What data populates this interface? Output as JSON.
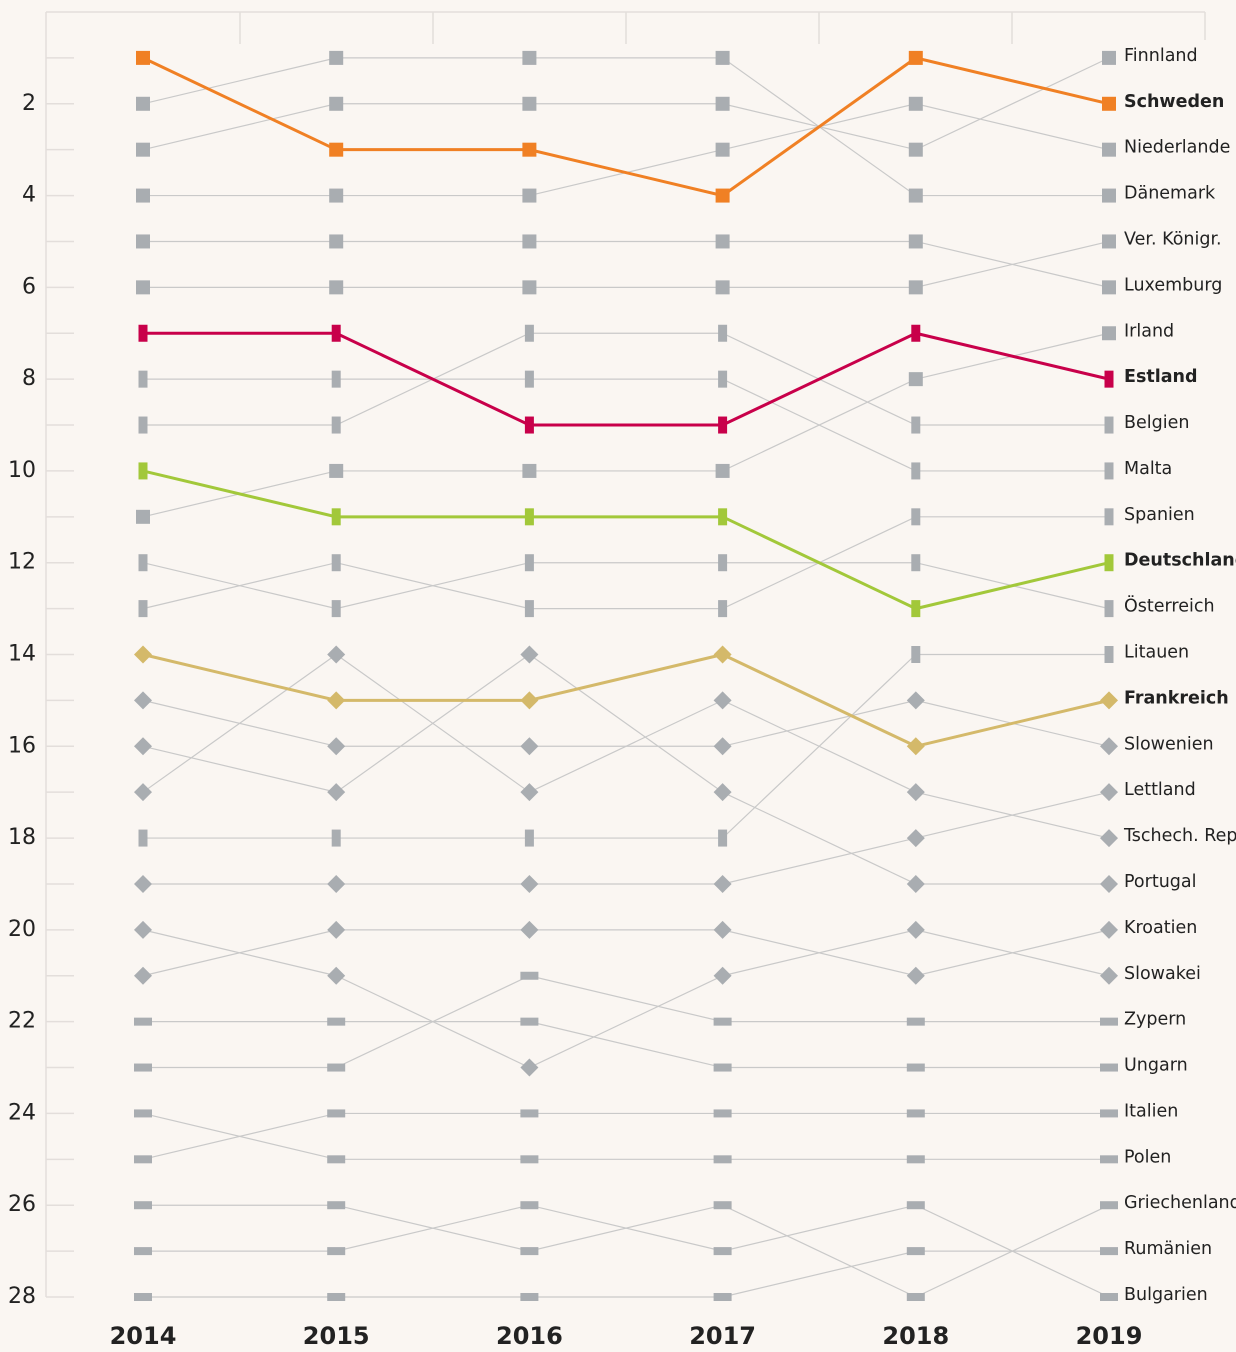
{
  "chart_data": {
    "type": "line",
    "categories": [
      "2014",
      "2015",
      "2016",
      "2017",
      "2018",
      "2019"
    ],
    "ylim": [
      0,
      28
    ],
    "y_inverted": true,
    "yticks": [
      2,
      4,
      6,
      8,
      10,
      12,
      14,
      16,
      18,
      20,
      22,
      24,
      26,
      28
    ],
    "yminor_ticks": [
      1,
      3,
      5,
      7,
      9,
      11,
      13,
      15,
      17,
      19,
      21,
      23,
      25,
      27
    ],
    "line_color": "#c9c9c9",
    "series": [
      {
        "name": "Finnland",
        "color": "#a9adb1",
        "marker": "square",
        "values": [
          3,
          2,
          2,
          2,
          3,
          1
        ]
      },
      {
        "name": "Schweden",
        "color": "#f08024",
        "marker": "square",
        "highlight": true,
        "values": [
          1,
          3,
          3,
          4,
          1,
          2
        ]
      },
      {
        "name": "Niederlande",
        "color": "#a9adb1",
        "marker": "square",
        "values": [
          4,
          4,
          4,
          3,
          2,
          3
        ]
      },
      {
        "name": "Dänemark",
        "color": "#a9adb1",
        "marker": "square",
        "values": [
          2,
          1,
          1,
          1,
          4,
          4
        ]
      },
      {
        "name": "Ver. Königr.",
        "color": "#a9adb1",
        "marker": "square",
        "values": [
          6,
          6,
          6,
          6,
          6,
          5
        ]
      },
      {
        "name": "Luxemburg",
        "color": "#a9adb1",
        "marker": "square",
        "values": [
          5,
          5,
          5,
          5,
          5,
          6
        ]
      },
      {
        "name": "Irland",
        "color": "#a9adb1",
        "marker": "square",
        "values": [
          11,
          10,
          10,
          10,
          8,
          7
        ]
      },
      {
        "name": "Estland",
        "color": "#c8004a",
        "marker": "bar-v",
        "highlight": true,
        "values": [
          7,
          7,
          9,
          9,
          7,
          8
        ]
      },
      {
        "name": "Belgien",
        "color": "#a9adb1",
        "marker": "bar-v",
        "values": [
          9,
          9,
          7,
          7,
          9,
          9
        ]
      },
      {
        "name": "Malta",
        "color": "#a9adb1",
        "marker": "bar-v",
        "values": [
          8,
          8,
          8,
          8,
          10,
          10
        ]
      },
      {
        "name": "Spanien",
        "color": "#a9adb1",
        "marker": "bar-v",
        "values": [
          13,
          12,
          13,
          13,
          11,
          11
        ]
      },
      {
        "name": "Deutschland",
        "color": "#a2c83a",
        "marker": "bar-v",
        "highlight": true,
        "values": [
          10,
          11,
          11,
          11,
          13,
          12
        ]
      },
      {
        "name": "Österreich",
        "color": "#a9adb1",
        "marker": "bar-v",
        "values": [
          12,
          13,
          12,
          12,
          12,
          13
        ]
      },
      {
        "name": "Litauen",
        "color": "#a9adb1",
        "marker": "bar-v",
        "values": [
          18,
          18,
          18,
          18,
          14,
          14
        ]
      },
      {
        "name": "Frankreich",
        "color": "#d4b96a",
        "marker": "diamond",
        "highlight": true,
        "values": [
          14,
          15,
          15,
          14,
          16,
          15
        ]
      },
      {
        "name": "Slowenien",
        "color": "#a9adb1",
        "marker": "diamond",
        "values": [
          15,
          16,
          16,
          16,
          15,
          16
        ]
      },
      {
        "name": "Lettland",
        "color": "#a9adb1",
        "marker": "diamond",
        "values": [
          19,
          19,
          19,
          19,
          18,
          17
        ]
      },
      {
        "name": "Tschech. Rep.",
        "color": "#a9adb1",
        "marker": "diamond",
        "values": [
          17,
          14,
          17,
          15,
          17,
          18
        ]
      },
      {
        "name": "Portugal",
        "color": "#a9adb1",
        "marker": "diamond",
        "values": [
          16,
          17,
          14,
          17,
          19,
          19
        ]
      },
      {
        "name": "Kroatien",
        "color": "#a9adb1",
        "marker": "diamond",
        "values": [
          21,
          20,
          20,
          20,
          21,
          20
        ]
      },
      {
        "name": "Slowakei",
        "color": "#a9adb1",
        "marker": "diamond",
        "values": [
          20,
          21,
          23,
          21,
          20,
          21
        ]
      },
      {
        "name": "Zypern",
        "color": "#a9adb1",
        "marker": "bar-h",
        "values": [
          23,
          23,
          21,
          22,
          22,
          22
        ]
      },
      {
        "name": "Ungarn",
        "color": "#a9adb1",
        "marker": "bar-h",
        "values": [
          22,
          22,
          22,
          23,
          23,
          23
        ]
      },
      {
        "name": "Italien",
        "color": "#a9adb1",
        "marker": "bar-h",
        "values": [
          25,
          24,
          24,
          24,
          24,
          24
        ]
      },
      {
        "name": "Polen",
        "color": "#a9adb1",
        "marker": "bar-h",
        "values": [
          24,
          25,
          25,
          25,
          25,
          25
        ]
      },
      {
        "name": "Griechenland",
        "color": "#a9adb1",
        "marker": "bar-h",
        "values": [
          26,
          26,
          27,
          26,
          28,
          26
        ]
      },
      {
        "name": "Rumänien",
        "color": "#a9adb1",
        "marker": "bar-h",
        "values": [
          28,
          28,
          28,
          28,
          27,
          27
        ]
      },
      {
        "name": "Bulgarien",
        "color": "#a9adb1",
        "marker": "bar-h",
        "values": [
          27,
          27,
          26,
          27,
          26,
          28
        ]
      }
    ]
  }
}
